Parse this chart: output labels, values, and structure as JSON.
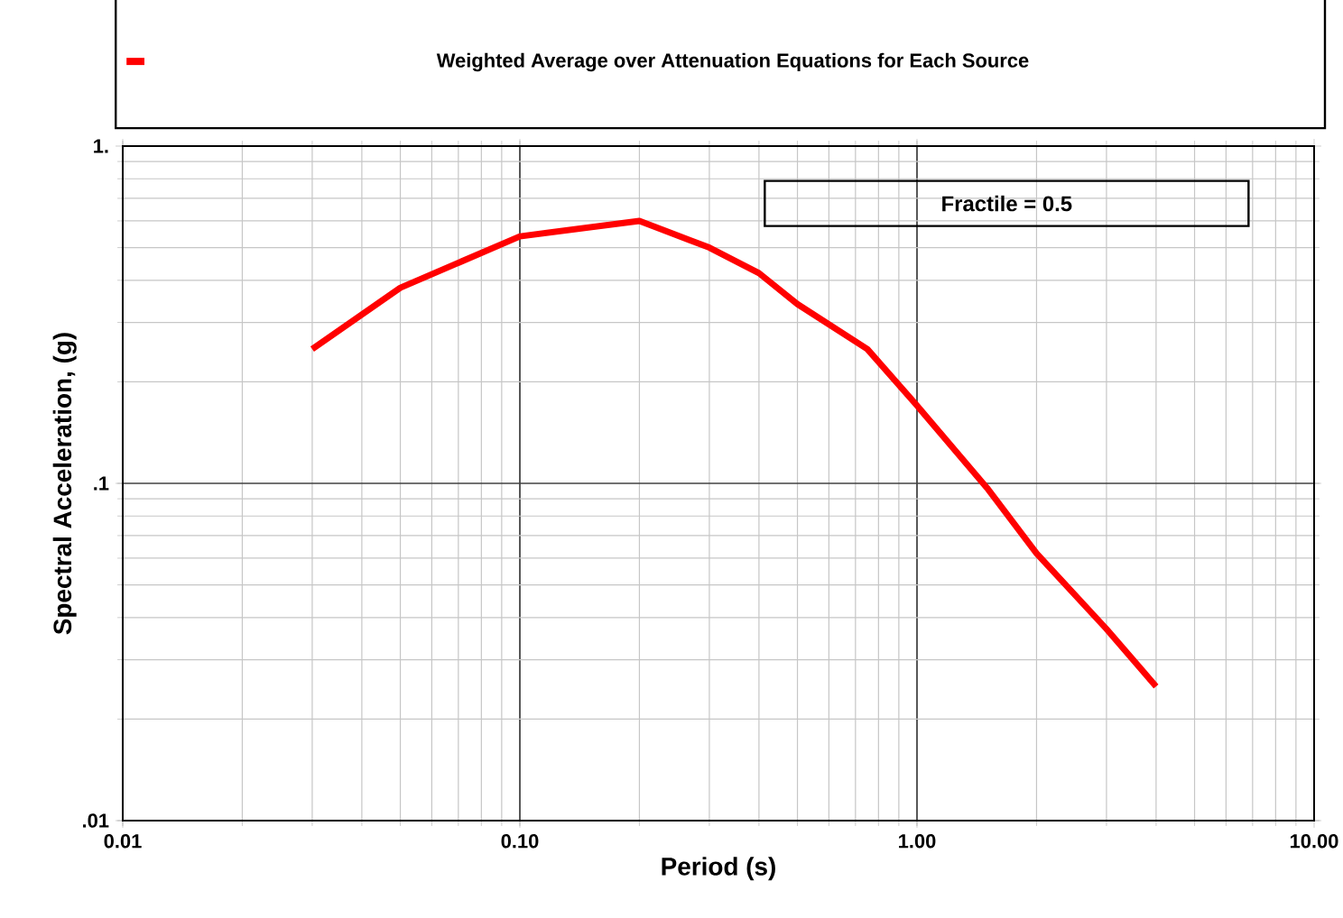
{
  "chart_data": {
    "type": "line",
    "xlabel": "Period (s)",
    "ylabel": "Spectral Acceleration, (g)",
    "log": "xy",
    "grid": true,
    "legend": "top",
    "annotations": [
      "Fractile = 0.5"
    ],
    "xlim": [
      0.01,
      10
    ],
    "ylim": [
      0.01,
      1
    ],
    "xticks": [
      {
        "value": 0.01,
        "label": "0.01"
      },
      {
        "value": 0.1,
        "label": "0.10"
      },
      {
        "value": 1,
        "label": "1.00"
      },
      {
        "value": 10,
        "label": "10.00"
      }
    ],
    "yticks": [
      {
        "value": 0.01,
        "label": ".01"
      },
      {
        "value": 0.1,
        "label": ".1"
      },
      {
        "value": 1,
        "label": "1."
      }
    ],
    "series": [
      {
        "name": "Weighted Average over Attenuation Equations for Each Source",
        "color": "#ff0000",
        "x": [
          0.03,
          0.05,
          0.1,
          0.2,
          0.3,
          0.4,
          0.5,
          0.75,
          1.0,
          1.5,
          2.0,
          3.0,
          4.0
        ],
        "values": [
          0.25,
          0.38,
          0.54,
          0.6,
          0.5,
          0.42,
          0.34,
          0.25,
          0.17,
          0.097,
          0.062,
          0.037,
          0.025
        ]
      }
    ]
  }
}
